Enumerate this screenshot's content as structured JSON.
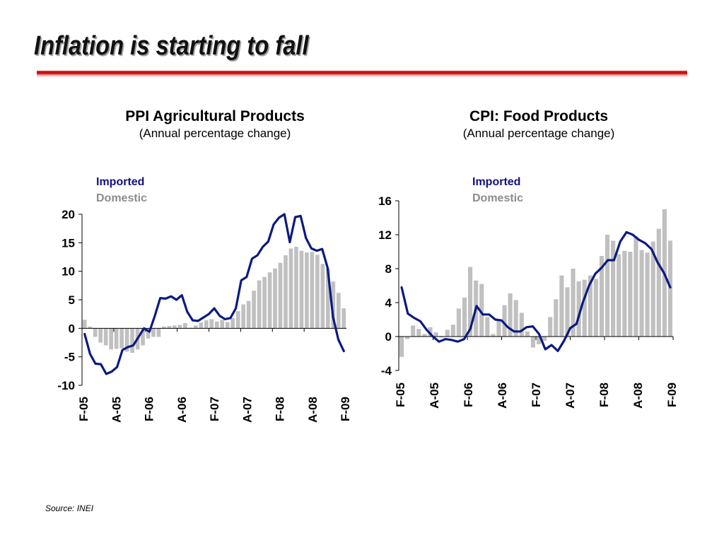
{
  "slide": {
    "title": "Inflation is starting to fall",
    "source": "Source: INEI"
  },
  "colors": {
    "imported": "#0b1a80",
    "domestic": "#c0c0c0",
    "title_rule": "#c00000"
  },
  "chart_data": [
    {
      "type": "bar",
      "title": "PPI Agricultural Products",
      "subtitle": "(Annual percentage change)",
      "legend": [
        "Imported",
        "Domestic"
      ],
      "legend_placement": "top-left",
      "ylim": [
        -10,
        20
      ],
      "yticks": [
        -10,
        -5,
        0,
        5,
        10,
        15,
        20
      ],
      "xtick_labels": [
        "F-05",
        "A-05",
        "F-06",
        "A-06",
        "F-07",
        "A-07",
        "F-08",
        "A-08",
        "F-09"
      ],
      "series": [
        {
          "name": "Domestic",
          "render": "bar",
          "values": [
            1.5,
            0.3,
            -1.5,
            -2.5,
            -3,
            -3.7,
            -3.6,
            -3.5,
            -4.1,
            -4.3,
            -3.7,
            -3,
            -1.8,
            -1.5,
            -1.5,
            0.3,
            0.4,
            0.5,
            0.6,
            0.9,
            0.1,
            0.5,
            1.0,
            1.4,
            1.6,
            1.2,
            1.5,
            1.1,
            1.8,
            3.0,
            4.2,
            4.8,
            6.6,
            8.4,
            9.0,
            9.8,
            10.5,
            11.5,
            12.8,
            14.0,
            14.3,
            13.6,
            13.3,
            13.4,
            12.9,
            11.3,
            10.5,
            8.2,
            6.2,
            3.5
          ]
        },
        {
          "name": "Imported",
          "render": "line",
          "values": [
            -1,
            -4.5,
            -6.2,
            -6.3,
            -8,
            -7.6,
            -6.8,
            -3.8,
            -3.3,
            -3.0,
            -1.5,
            0.0,
            -0.6,
            2.2,
            5.3,
            5.2,
            5.6,
            5.0,
            5.8,
            2.9,
            1.4,
            1.3,
            1.9,
            2.5,
            3.5,
            2.2,
            1.6,
            1.8,
            3.5,
            8.4,
            9.0,
            12.2,
            12.8,
            14.3,
            15.2,
            18.2,
            19.4,
            20.0,
            15.1,
            19.5,
            19.7,
            15.8,
            14.0,
            13.6,
            13.9,
            10.6,
            2.0,
            -2.0,
            -4.0
          ]
        }
      ]
    },
    {
      "type": "bar",
      "title": "CPI: Food Products",
      "subtitle": "(Annual percentage change)",
      "legend": [
        "Imported",
        "Domestic"
      ],
      "legend_placement": "top-left",
      "ylim": [
        -4,
        16
      ],
      "yticks": [
        -4,
        0,
        4,
        8,
        12,
        16
      ],
      "xtick_labels": [
        "F-05",
        "A-05",
        "F-06",
        "A-06",
        "F-07",
        "A-07",
        "F-08",
        "A-08",
        "F-09"
      ],
      "series": [
        {
          "name": "Domestic",
          "render": "bar",
          "values": [
            -2.4,
            -0.3,
            1.3,
            0.9,
            0.3,
            1.1,
            0.5,
            -0.1,
            0.8,
            1.4,
            3.3,
            4.6,
            8.2,
            6.6,
            6.2,
            2.3,
            0.3,
            1.9,
            3.7,
            5.1,
            4.3,
            2.8,
            0.6,
            -1.3,
            -0.9,
            -0.5,
            2.3,
            4.4,
            7.2,
            5.8,
            8.0,
            6.5,
            6.7,
            7.2,
            6.8,
            9.5,
            12.0,
            11.3,
            9.7,
            10.1,
            10.0,
            11.8,
            10.2,
            9.9,
            11.2,
            12.7,
            15.0,
            11.3
          ]
        },
        {
          "name": "Imported",
          "render": "line",
          "values": [
            5.8,
            2.7,
            2.2,
            1.8,
            0.8,
            0.0,
            -0.6,
            -0.3,
            -0.4,
            -0.6,
            -0.3,
            0.9,
            3.6,
            2.6,
            2.6,
            2.0,
            1.9,
            1.1,
            0.6,
            0.6,
            1.1,
            1.2,
            0.3,
            -1.5,
            -1.0,
            -1.7,
            -0.5,
            1.0,
            1.5,
            4.0,
            6.0,
            7.4,
            8.1,
            9.0,
            9.0,
            11.2,
            12.3,
            12.0,
            11.4,
            11.0,
            10.3,
            8.7,
            7.5,
            5.8
          ]
        }
      ]
    }
  ]
}
